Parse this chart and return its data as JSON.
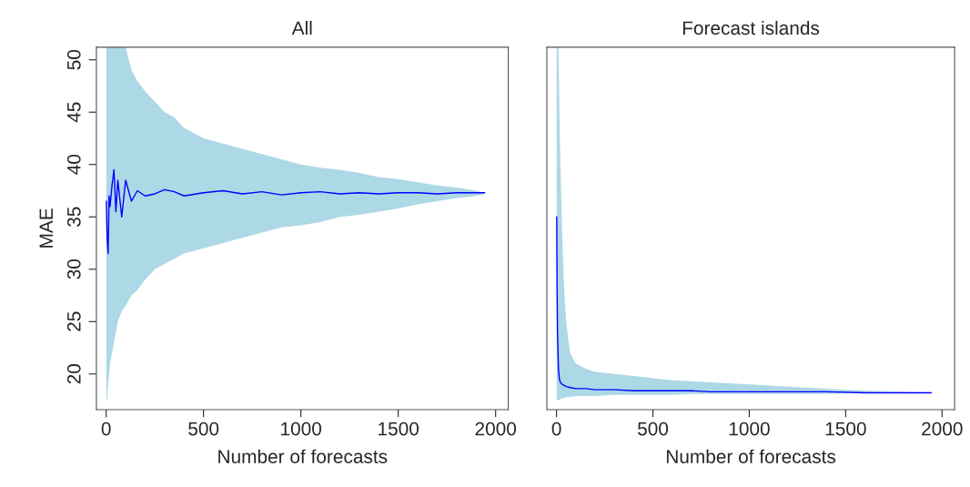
{
  "chart_data": [
    {
      "type": "line",
      "title": "All",
      "xlabel": "Number of forecasts",
      "ylabel": "MAE",
      "x": [
        1,
        5,
        10,
        15,
        20,
        30,
        40,
        50,
        60,
        80,
        100,
        130,
        160,
        200,
        250,
        300,
        350,
        400,
        500,
        600,
        700,
        800,
        900,
        1000,
        1100,
        1200,
        1300,
        1400,
        1500,
        1600,
        1700,
        1800,
        1900,
        1944
      ],
      "series": [
        {
          "color": "#0000ff",
          "values": [
            36.5,
            33,
            31.5,
            37,
            36,
            38,
            39.5,
            35.5,
            38.5,
            35,
            38.5,
            36.5,
            37.5,
            37,
            37.2,
            37.6,
            37.4,
            37,
            37.3,
            37.5,
            37.2,
            37.4,
            37.1,
            37.3,
            37.4,
            37.2,
            37.3,
            37.2,
            37.3,
            37.3,
            37.2,
            37.3,
            37.3,
            37.3
          ],
          "upper": [
            51.2,
            51.2,
            51.2,
            51.2,
            51.2,
            51.2,
            51.2,
            51.2,
            51.2,
            51.2,
            51.2,
            49,
            48,
            47,
            46,
            45,
            44.5,
            43.5,
            42.5,
            42,
            41.5,
            41,
            40.5,
            40,
            39.7,
            39.5,
            39.2,
            38.8,
            38.6,
            38.3,
            38,
            37.8,
            37.5,
            37.3
          ],
          "lower": [
            17.5,
            17.5,
            19,
            20,
            21,
            22,
            23,
            24,
            25,
            26,
            26.5,
            27.5,
            28,
            29,
            30,
            30.5,
            31,
            31.5,
            32,
            32.5,
            33,
            33.5,
            34,
            34.2,
            34.5,
            35,
            35.2,
            35.5,
            35.8,
            36.2,
            36.5,
            36.8,
            37,
            37.2
          ]
        }
      ],
      "xlim": [
        -50,
        2065
      ],
      "ylim": [
        16.6,
        51.2
      ],
      "xticks": [
        0,
        500,
        1000,
        1500,
        2000
      ],
      "yticks": [
        20,
        25,
        30,
        35,
        40,
        45,
        50
      ],
      "grid": false
    },
    {
      "type": "line",
      "title": "Forecast islands",
      "xlabel": "Number of forecasts",
      "x": [
        1,
        3,
        5,
        10,
        15,
        20,
        30,
        40,
        50,
        70,
        100,
        150,
        200,
        300,
        400,
        500,
        600,
        700,
        800,
        1000,
        1200,
        1400,
        1600,
        1800,
        1944
      ],
      "series": [
        {
          "color": "#0000ff",
          "values": [
            35,
            28,
            24,
            20.5,
            19.5,
            19.2,
            19,
            18.9,
            18.8,
            18.7,
            18.6,
            18.6,
            18.5,
            18.5,
            18.4,
            18.4,
            18.4,
            18.4,
            18.3,
            18.3,
            18.3,
            18.3,
            18.2,
            18.2,
            18.2
          ],
          "upper": [
            51.2,
            51.2,
            51.2,
            51.2,
            45,
            40,
            33,
            28,
            25,
            22,
            21,
            20.5,
            20.2,
            20,
            19.8,
            19.6,
            19.4,
            19.3,
            19.2,
            19,
            18.8,
            18.6,
            18.4,
            18.3,
            18.2
          ],
          "lower": [
            17.5,
            17.5,
            17.5,
            17.5,
            17.5,
            17.6,
            17.7,
            17.7,
            17.8,
            17.8,
            17.9,
            17.9,
            17.9,
            18,
            18,
            18,
            18,
            18.1,
            18.1,
            18.1,
            18.1,
            18.1,
            18.2,
            18.2,
            18.2
          ]
        }
      ],
      "xlim": [
        -50,
        2065
      ],
      "ylim": [
        16.6,
        51.2
      ],
      "xticks": [
        0,
        500,
        1000,
        1500,
        2000
      ],
      "tick_labels": "x",
      "grid": false
    }
  ]
}
